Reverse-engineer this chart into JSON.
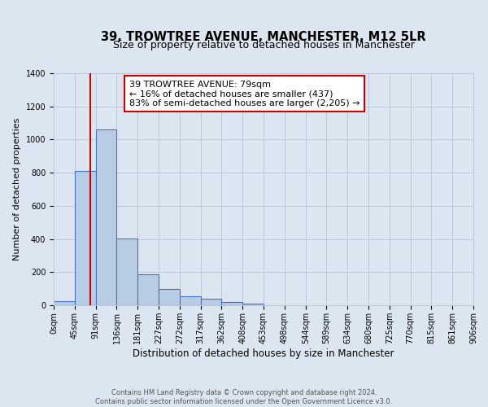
{
  "title": "39, TROWTREE AVENUE, MANCHESTER, M12 5LR",
  "subtitle": "Size of property relative to detached houses in Manchester",
  "xlabel": "Distribution of detached houses by size in Manchester",
  "ylabel": "Number of detached properties",
  "bar_values": [
    25,
    810,
    1060,
    405,
    185,
    100,
    55,
    38,
    20,
    10,
    0,
    0,
    0,
    0,
    0,
    0,
    0,
    0,
    0,
    0
  ],
  "bin_edges": [
    0,
    45,
    91,
    136,
    181,
    227,
    272,
    317,
    362,
    408,
    453,
    498,
    544,
    589,
    634,
    680,
    725,
    770,
    815,
    861,
    906
  ],
  "tick_labels": [
    "0sqm",
    "45sqm",
    "91sqm",
    "136sqm",
    "181sqm",
    "227sqm",
    "272sqm",
    "317sqm",
    "362sqm",
    "408sqm",
    "453sqm",
    "498sqm",
    "544sqm",
    "589sqm",
    "634sqm",
    "680sqm",
    "725sqm",
    "770sqm",
    "815sqm",
    "861sqm",
    "906sqm"
  ],
  "bar_color": "#b8cce4",
  "bar_edge_color": "#4472c4",
  "bar_edge_width": 0.8,
  "grid_color": "#c0c8d8",
  "background_color": "#dce6f1",
  "vline_x": 79,
  "vline_color": "#cc0000",
  "ylim": [
    0,
    1400
  ],
  "yticks": [
    0,
    200,
    400,
    600,
    800,
    1000,
    1200,
    1400
  ],
  "annotation_text": "39 TROWTREE AVENUE: 79sqm\n← 16% of detached houses are smaller (437)\n83% of semi-detached houses are larger (2,205) →",
  "annotation_box_color": "#ffffff",
  "annotation_box_edgecolor": "#cc0000",
  "footer_line1": "Contains HM Land Registry data © Crown copyright and database right 2024.",
  "footer_line2": "Contains public sector information licensed under the Open Government Licence v3.0.",
  "title_fontsize": 10.5,
  "subtitle_fontsize": 9,
  "xlabel_fontsize": 8.5,
  "ylabel_fontsize": 8,
  "tick_fontsize": 7,
  "annotation_fontsize": 8,
  "footer_fontsize": 6
}
